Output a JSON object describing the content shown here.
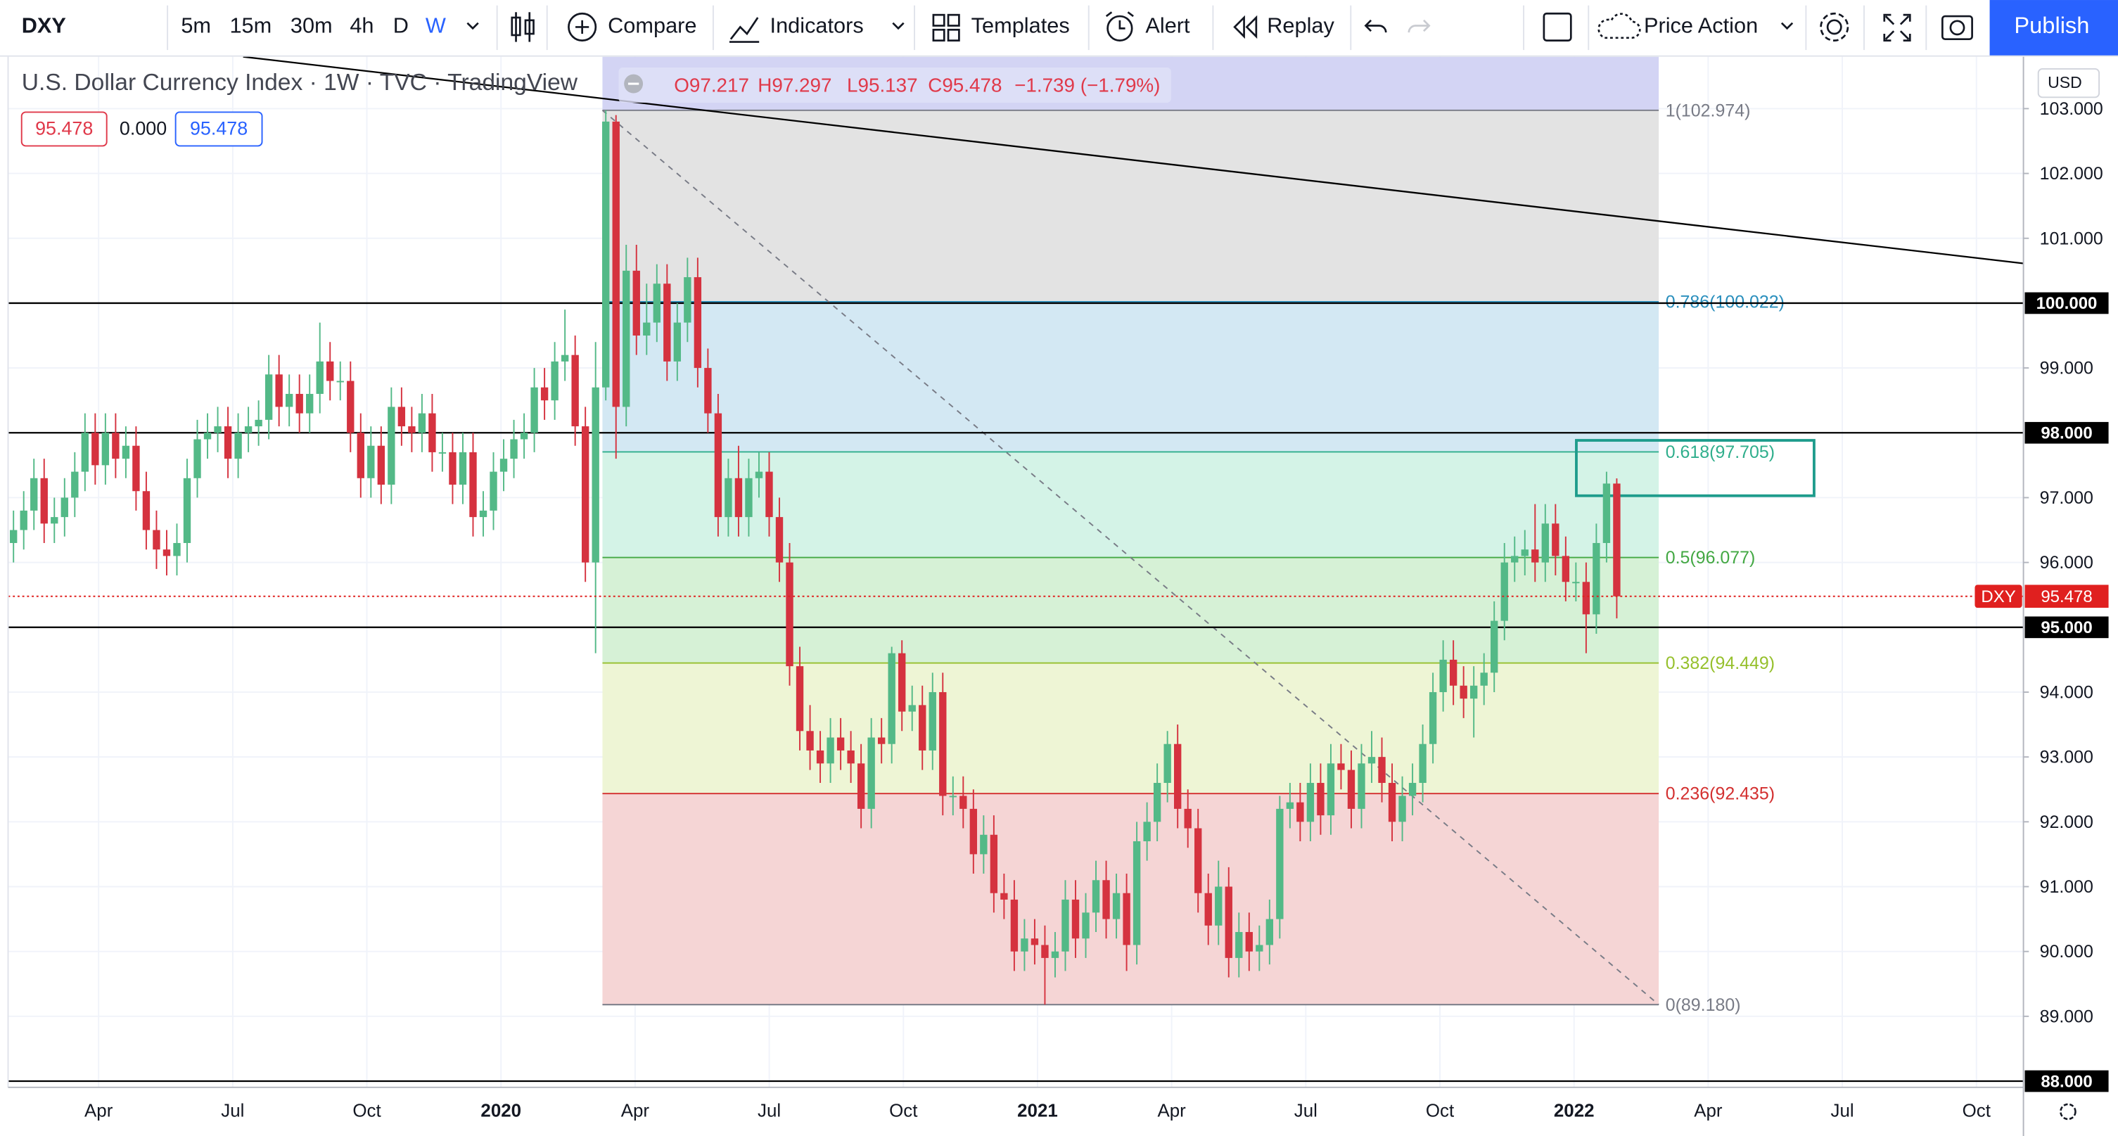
{
  "toolbar": {
    "symbol": "DXY",
    "intervals": [
      "5m",
      "15m",
      "30m",
      "4h",
      "D",
      "W"
    ],
    "compare": "Compare",
    "indicators": "Indicators",
    "templates": "Templates",
    "alert": "Alert",
    "replay": "Replay",
    "layout": "Price Action",
    "publish": "Publish"
  },
  "legend": {
    "ohlc": [
      "O97.217",
      "H97.297",
      "L95.137",
      "C95.478",
      "−1.739 (−1.79%)"
    ],
    "badges": [
      "95.478",
      "0.000",
      "95.478"
    ]
  },
  "currency": "USD",
  "chart_data": {
    "type": "candlestick",
    "title": "U.S. Dollar Currency Index · 1W · TVC · TradingView",
    "up_color": "#53b987",
    "down_color": "#d5323f",
    "ylim": [
      87.8,
      103.8
    ],
    "yticks": [
      {
        "value": 89,
        "label": "89.000"
      },
      {
        "value": 90,
        "label": "90.000"
      },
      {
        "value": 91,
        "label": "91.000"
      },
      {
        "value": 92,
        "label": "92.000"
      },
      {
        "value": 93,
        "label": "93.000"
      },
      {
        "value": 94,
        "label": "94.000"
      },
      {
        "value": 96,
        "label": "96.000"
      },
      {
        "value": 97,
        "label": "97.000"
      },
      {
        "value": 99,
        "label": "99.000"
      },
      {
        "value": 101,
        "label": "101.000"
      },
      {
        "value": 102,
        "label": "102.000"
      },
      {
        "value": 103,
        "label": "103.000"
      }
    ],
    "xticks": [
      "Apr",
      "Jul",
      "Oct",
      "2020",
      "Apr",
      "Jul",
      "Oct",
      "2021",
      "Apr",
      "Jul",
      "Oct",
      "2022",
      "Apr",
      "Jul",
      "Oct"
    ],
    "grid": true,
    "hlines": [
      {
        "value": 100,
        "label": "100.000"
      },
      {
        "value": 98,
        "label": "98.000"
      },
      {
        "value": 95,
        "label": "95.000"
      },
      {
        "value": 88,
        "label": "88.000"
      }
    ],
    "hline_color": "#000000",
    "fib_levels": [
      {
        "value": 102.974,
        "label": "1(102.974)",
        "color": "#787b86",
        "fill": "#d3d4f4"
      },
      {
        "value": 100.022,
        "label": "0.786(100.022)",
        "color": "#2a8fbd",
        "fill": "#e3e3e3"
      },
      {
        "value": 97.705,
        "label": "0.618(97.705)",
        "color": "#2fae8c",
        "fill": "#d3e8f3"
      },
      {
        "value": 96.077,
        "label": "0.5(96.077)",
        "color": "#43a843",
        "fill": "#d4f3e7"
      },
      {
        "value": 94.449,
        "label": "0.382(94.449)",
        "color": "#96c02c",
        "fill": "#d6f1d6"
      },
      {
        "value": 92.435,
        "label": "0.236(92.435)",
        "color": "#d32f2f",
        "fill": "#eef5d5"
      },
      {
        "value": 89.18,
        "label": "0(89.180)",
        "color": "#787b86",
        "fill": "#f5d5d5"
      }
    ],
    "last_price": 95.478,
    "last_symbol": "DXY",
    "last_color": "#e0201f",
    "candles": [
      [
        96.3,
        96.8,
        96.0,
        96.5
      ],
      [
        96.5,
        97.1,
        96.2,
        96.8
      ],
      [
        96.8,
        97.6,
        96.5,
        97.3
      ],
      [
        97.3,
        97.6,
        96.3,
        96.6
      ],
      [
        96.6,
        97.0,
        96.3,
        96.7
      ],
      [
        96.7,
        97.3,
        96.4,
        97.0
      ],
      [
        97.0,
        97.7,
        96.7,
        97.4
      ],
      [
        97.4,
        98.3,
        97.1,
        98.0
      ],
      [
        98.0,
        98.3,
        97.2,
        97.5
      ],
      [
        97.5,
        98.3,
        97.2,
        98.0
      ],
      [
        98.0,
        98.3,
        97.3,
        97.6
      ],
      [
        97.6,
        98.1,
        97.3,
        97.8
      ],
      [
        97.8,
        98.1,
        96.8,
        97.1
      ],
      [
        97.1,
        97.4,
        96.2,
        96.5
      ],
      [
        96.5,
        96.8,
        95.9,
        96.2
      ],
      [
        96.2,
        96.5,
        95.8,
        96.1
      ],
      [
        96.1,
        96.6,
        95.8,
        96.3
      ],
      [
        96.3,
        97.6,
        96.0,
        97.3
      ],
      [
        97.3,
        98.2,
        97.0,
        97.9
      ],
      [
        97.9,
        98.3,
        97.6,
        98.0
      ],
      [
        98.0,
        98.4,
        97.7,
        98.1
      ],
      [
        98.1,
        98.4,
        97.3,
        97.6
      ],
      [
        97.6,
        98.3,
        97.3,
        98.0
      ],
      [
        98.0,
        98.4,
        97.7,
        98.1
      ],
      [
        98.1,
        98.5,
        97.8,
        98.2
      ],
      [
        98.2,
        99.2,
        97.9,
        98.9
      ],
      [
        98.9,
        99.2,
        98.1,
        98.4
      ],
      [
        98.4,
        98.9,
        98.1,
        98.6
      ],
      [
        98.6,
        98.9,
        98.0,
        98.3
      ],
      [
        98.3,
        98.9,
        98.0,
        98.6
      ],
      [
        98.6,
        99.7,
        98.3,
        99.1
      ],
      [
        99.1,
        99.4,
        98.5,
        98.8
      ],
      [
        98.8,
        99.1,
        98.5,
        98.8
      ],
      [
        98.8,
        99.1,
        97.7,
        98.0
      ],
      [
        98.0,
        98.3,
        97.0,
        97.3
      ],
      [
        97.3,
        98.1,
        97.0,
        97.8
      ],
      [
        97.8,
        98.1,
        96.9,
        97.2
      ],
      [
        97.2,
        98.7,
        96.9,
        98.4
      ],
      [
        98.4,
        98.7,
        97.8,
        98.1
      ],
      [
        98.1,
        98.4,
        97.7,
        98.0
      ],
      [
        98.0,
        98.6,
        97.7,
        98.3
      ],
      [
        98.3,
        98.6,
        97.4,
        97.7
      ],
      [
        97.7,
        98.0,
        97.4,
        97.7
      ],
      [
        97.7,
        98.0,
        96.9,
        97.2
      ],
      [
        97.2,
        98.0,
        96.9,
        97.7
      ],
      [
        97.7,
        98.0,
        96.4,
        96.7
      ],
      [
        96.7,
        97.1,
        96.4,
        96.8
      ],
      [
        96.8,
        97.7,
        96.5,
        97.4
      ],
      [
        97.4,
        97.9,
        97.1,
        97.6
      ],
      [
        97.6,
        98.2,
        97.3,
        97.9
      ],
      [
        97.9,
        98.3,
        97.6,
        98.0
      ],
      [
        98.0,
        99.0,
        97.7,
        98.7
      ],
      [
        98.7,
        99.0,
        98.2,
        98.5
      ],
      [
        98.5,
        99.4,
        98.2,
        99.1
      ],
      [
        99.1,
        99.9,
        98.8,
        99.2
      ],
      [
        99.2,
        99.5,
        97.8,
        98.1
      ],
      [
        98.1,
        98.4,
        95.7,
        96.0
      ],
      [
        96.0,
        99.4,
        94.6,
        98.7
      ],
      [
        98.7,
        102.974,
        98.5,
        102.8
      ],
      [
        102.8,
        102.9,
        97.6,
        98.4
      ],
      [
        98.4,
        100.9,
        98.1,
        100.5
      ],
      [
        100.5,
        100.9,
        99.2,
        99.5
      ],
      [
        99.5,
        100.3,
        99.2,
        99.7
      ],
      [
        99.7,
        100.6,
        99.4,
        100.3
      ],
      [
        100.3,
        100.6,
        98.8,
        99.1
      ],
      [
        99.1,
        100.0,
        98.8,
        99.7
      ],
      [
        99.7,
        100.7,
        99.4,
        100.4
      ],
      [
        100.4,
        100.7,
        98.7,
        99.0
      ],
      [
        99.0,
        99.3,
        98.0,
        98.3
      ],
      [
        98.3,
        98.6,
        96.4,
        96.7
      ],
      [
        96.7,
        97.6,
        96.4,
        97.3
      ],
      [
        97.3,
        97.8,
        96.4,
        96.7
      ],
      [
        96.7,
        97.6,
        96.4,
        97.3
      ],
      [
        97.3,
        97.7,
        97.0,
        97.4
      ],
      [
        97.4,
        97.7,
        96.4,
        96.7
      ],
      [
        96.7,
        97.0,
        95.7,
        96.0
      ],
      [
        96.0,
        96.3,
        94.1,
        94.4
      ],
      [
        94.4,
        94.7,
        93.1,
        93.4
      ],
      [
        93.4,
        93.8,
        92.8,
        93.1
      ],
      [
        93.1,
        93.4,
        92.6,
        92.9
      ],
      [
        92.9,
        93.6,
        92.6,
        93.3
      ],
      [
        93.3,
        93.6,
        92.8,
        93.1
      ],
      [
        93.1,
        93.4,
        92.6,
        92.9
      ],
      [
        92.9,
        93.2,
        91.9,
        92.2
      ],
      [
        92.2,
        93.6,
        91.9,
        93.3
      ],
      [
        93.3,
        93.6,
        92.9,
        93.2
      ],
      [
        93.2,
        94.7,
        92.9,
        94.6
      ],
      [
        94.6,
        94.8,
        93.4,
        93.7
      ],
      [
        93.7,
        94.1,
        93.4,
        93.8
      ],
      [
        93.8,
        94.1,
        92.8,
        93.1
      ],
      [
        93.1,
        94.3,
        92.8,
        94.0
      ],
      [
        94.0,
        94.3,
        92.1,
        92.4
      ],
      [
        92.4,
        92.7,
        92.1,
        92.4
      ],
      [
        92.4,
        92.7,
        91.9,
        92.2
      ],
      [
        92.2,
        92.5,
        91.2,
        91.5
      ],
      [
        91.5,
        92.1,
        91.2,
        91.8
      ],
      [
        91.8,
        92.1,
        90.6,
        90.9
      ],
      [
        90.9,
        91.2,
        90.5,
        90.8
      ],
      [
        90.8,
        91.1,
        89.7,
        90.0
      ],
      [
        90.0,
        90.5,
        89.7,
        90.2
      ],
      [
        90.2,
        90.5,
        89.8,
        90.1
      ],
      [
        90.1,
        90.4,
        89.18,
        89.9
      ],
      [
        89.9,
        90.3,
        89.6,
        90.0
      ],
      [
        90.0,
        91.1,
        89.7,
        90.8
      ],
      [
        90.8,
        91.1,
        89.9,
        90.2
      ],
      [
        90.2,
        90.9,
        89.9,
        90.6
      ],
      [
        90.6,
        91.4,
        90.3,
        91.1
      ],
      [
        91.1,
        91.4,
        90.2,
        90.5
      ],
      [
        90.5,
        91.2,
        90.2,
        90.9
      ],
      [
        90.9,
        91.2,
        89.7,
        90.1
      ],
      [
        90.1,
        92.0,
        89.8,
        91.7
      ],
      [
        91.7,
        92.3,
        91.4,
        92.0
      ],
      [
        92.0,
        92.9,
        91.7,
        92.6
      ],
      [
        92.6,
        93.4,
        92.3,
        93.2
      ],
      [
        93.2,
        93.5,
        91.9,
        92.2
      ],
      [
        92.2,
        92.5,
        91.6,
        91.9
      ],
      [
        91.9,
        92.2,
        90.6,
        90.9
      ],
      [
        90.9,
        91.2,
        90.1,
        90.4
      ],
      [
        90.4,
        91.4,
        90.1,
        91.0
      ],
      [
        91.0,
        91.3,
        89.6,
        89.9
      ],
      [
        89.9,
        90.6,
        89.6,
        90.3
      ],
      [
        90.3,
        90.6,
        89.7,
        90.0
      ],
      [
        90.0,
        90.4,
        89.7,
        90.1
      ],
      [
        90.1,
        90.8,
        89.8,
        90.5
      ],
      [
        90.5,
        92.4,
        90.2,
        92.2
      ],
      [
        92.2,
        92.6,
        91.9,
        92.3
      ],
      [
        92.3,
        92.6,
        91.7,
        92.0
      ],
      [
        92.0,
        92.9,
        91.7,
        92.6
      ],
      [
        92.6,
        92.9,
        91.8,
        92.1
      ],
      [
        92.1,
        93.2,
        91.8,
        92.9
      ],
      [
        92.9,
        93.2,
        92.5,
        92.8
      ],
      [
        92.8,
        93.1,
        91.9,
        92.2
      ],
      [
        92.2,
        93.2,
        91.9,
        92.9
      ],
      [
        92.9,
        93.4,
        92.6,
        93.0
      ],
      [
        93.0,
        93.3,
        92.3,
        92.6
      ],
      [
        92.6,
        92.9,
        91.7,
        92.0
      ],
      [
        92.0,
        92.7,
        91.7,
        92.4
      ],
      [
        92.4,
        92.9,
        92.1,
        92.6
      ],
      [
        92.6,
        93.5,
        92.3,
        93.2
      ],
      [
        93.2,
        94.3,
        92.9,
        94.0
      ],
      [
        94.0,
        94.8,
        93.7,
        94.5
      ],
      [
        94.5,
        94.8,
        93.8,
        94.1
      ],
      [
        94.1,
        94.4,
        93.6,
        93.9
      ],
      [
        93.9,
        94.4,
        93.3,
        94.1
      ],
      [
        94.1,
        94.6,
        93.8,
        94.3
      ],
      [
        94.3,
        95.4,
        94.0,
        95.1
      ],
      [
        95.1,
        96.3,
        94.8,
        96.0
      ],
      [
        96.0,
        96.4,
        95.7,
        96.1
      ],
      [
        96.1,
        96.5,
        95.8,
        96.2
      ],
      [
        96.2,
        96.9,
        95.7,
        96.0
      ],
      [
        96.0,
        96.9,
        95.7,
        96.6
      ],
      [
        96.6,
        96.9,
        95.8,
        96.1
      ],
      [
        96.1,
        96.4,
        95.4,
        95.7
      ],
      [
        95.7,
        96.0,
        95.4,
        95.7
      ],
      [
        95.7,
        96.0,
        94.6,
        95.2
      ],
      [
        95.2,
        96.6,
        94.9,
        96.3
      ],
      [
        96.3,
        97.4,
        96.0,
        97.217
      ],
      [
        97.217,
        97.297,
        95.137,
        95.478
      ]
    ]
  }
}
